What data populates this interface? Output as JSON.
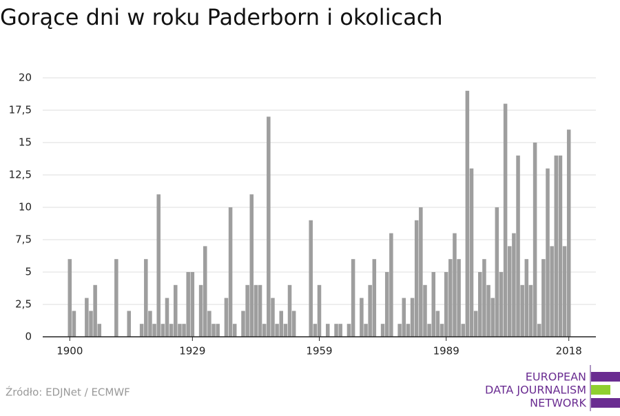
{
  "chart_data": {
    "type": "bar",
    "title": "Gorące dni w roku Paderborn i okolicach",
    "x": [
      1900,
      1901,
      1902,
      1903,
      1904,
      1905,
      1906,
      1907,
      1908,
      1909,
      1910,
      1911,
      1912,
      1913,
      1914,
      1915,
      1916,
      1917,
      1918,
      1919,
      1920,
      1921,
      1922,
      1923,
      1924,
      1925,
      1926,
      1927,
      1928,
      1929,
      1930,
      1931,
      1932,
      1933,
      1934,
      1935,
      1936,
      1937,
      1938,
      1939,
      1940,
      1941,
      1942,
      1943,
      1944,
      1945,
      1946,
      1947,
      1948,
      1949,
      1950,
      1951,
      1952,
      1953,
      1954,
      1955,
      1956,
      1957,
      1958,
      1959,
      1960,
      1961,
      1962,
      1963,
      1964,
      1965,
      1966,
      1967,
      1968,
      1969,
      1970,
      1971,
      1972,
      1973,
      1974,
      1975,
      1976,
      1977,
      1978,
      1979,
      1980,
      1981,
      1982,
      1983,
      1984,
      1985,
      1986,
      1987,
      1988,
      1989,
      1990,
      1991,
      1992,
      1993,
      1994,
      1995,
      1996,
      1997,
      1998,
      1999,
      2000,
      2001,
      2002,
      2003,
      2004,
      2005,
      2006,
      2007,
      2008,
      2009,
      2010,
      2011,
      2012,
      2013,
      2014,
      2015,
      2016,
      2017,
      2018
    ],
    "values": [
      6,
      2,
      0,
      0,
      3,
      2,
      4,
      1,
      0,
      0,
      0,
      6,
      0,
      0,
      2,
      0,
      0,
      1,
      6,
      2,
      1,
      11,
      1,
      3,
      1,
      4,
      1,
      1,
      5,
      5,
      0,
      4,
      7,
      2,
      1,
      1,
      0,
      3,
      10,
      1,
      0,
      2,
      4,
      11,
      4,
      4,
      1,
      17,
      3,
      1,
      2,
      1,
      4,
      2,
      0,
      0,
      0,
      9,
      1,
      4,
      0,
      1,
      0,
      1,
      1,
      0,
      1,
      6,
      0,
      3,
      1,
      4,
      6,
      0,
      1,
      5,
      8,
      0,
      1,
      3,
      1,
      3,
      9,
      10,
      4,
      1,
      5,
      2,
      1,
      5,
      6,
      8,
      6,
      1,
      19,
      13,
      2,
      5,
      6,
      4,
      3,
      10,
      5,
      18,
      7,
      8,
      14,
      4,
      6,
      4,
      15,
      1,
      6,
      13,
      7,
      14,
      14,
      7,
      16
    ],
    "color": "#9e9e9e",
    "xlim": [
      1893.6,
      2024.4
    ],
    "xticks": [
      1900,
      1929,
      1959,
      1989,
      2018
    ],
    "ylim": [
      0,
      20
    ],
    "yticks": [
      0,
      {
        "value": 2.5,
        "label": "2,5"
      },
      5,
      {
        "value": 7.5,
        "label": "7,5"
      },
      10,
      {
        "value": 12.5,
        "label": "12,5"
      },
      15,
      {
        "value": 17.5,
        "label": "17,5"
      },
      20
    ],
    "grid": true
  },
  "source": "Źródło: EDJNet / ECMWF",
  "logo": {
    "lines": [
      "EUROPEAN",
      "DATA JOURNALISM",
      "NETWORK"
    ]
  }
}
